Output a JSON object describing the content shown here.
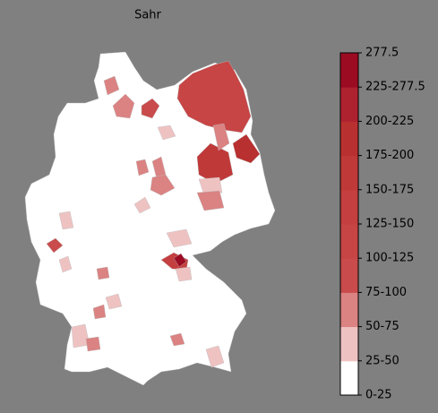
{
  "title": "Sahr",
  "colorbar": {
    "labels": [
      "0-25",
      "25-50",
      "50-75",
      "75-100",
      "100-125",
      "125-150",
      "150-175",
      "175-200",
      "200-225",
      "225-277.5",
      "277.5"
    ],
    "colors": [
      "#ffffff",
      "#efc2c2",
      "#db8282",
      "#c94b4b",
      "#c74545",
      "#c43f3f",
      "#c03939",
      "#b93030",
      "#ae2230",
      "#9b0c22"
    ]
  }
}
